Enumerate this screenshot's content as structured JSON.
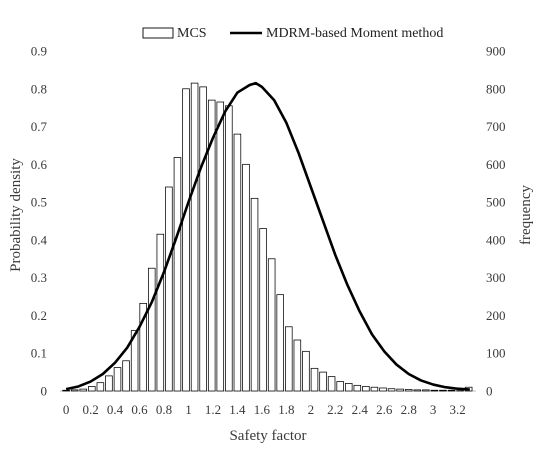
{
  "chart_data": {
    "type": "bar",
    "title": "",
    "xlabel": "Safety factor",
    "ylabel": "Probability density",
    "y2label": "frequency",
    "xlim": [
      -0.05,
      3.35
    ],
    "ylim": [
      0,
      0.9
    ],
    "y2lim": [
      0,
      900
    ],
    "x_ticks": [
      "0",
      "0.2",
      "0.4",
      "0.6",
      "0.8",
      "1",
      "1.2",
      "1.4",
      "1.6",
      "1.8",
      "2",
      "2.2",
      "2.4",
      "2.6",
      "2.8",
      "3",
      "3.2"
    ],
    "y_ticks": [
      "0",
      "0.1",
      "0.2",
      "0.3",
      "0.4",
      "0.5",
      "0.6",
      "0.7",
      "0.8",
      "0.9"
    ],
    "y2_ticks": [
      "0",
      "100",
      "200",
      "300",
      "400",
      "500",
      "600",
      "700",
      "800",
      "900"
    ],
    "grid": false,
    "legend_position": "top",
    "legend": {
      "mcs": "MCS",
      "curve": "MDRM-based Moment method"
    },
    "series": [
      {
        "name": "MCS",
        "kind": "histogram",
        "axis": "right",
        "bin_width": 0.07,
        "x": [
          0.0,
          0.07,
          0.14,
          0.21,
          0.28,
          0.35,
          0.42,
          0.49,
          0.56,
          0.63,
          0.7,
          0.77,
          0.84,
          0.91,
          0.98,
          1.05,
          1.12,
          1.19,
          1.26,
          1.33,
          1.4,
          1.47,
          1.54,
          1.61,
          1.68,
          1.75,
          1.82,
          1.89,
          1.96,
          2.03,
          2.1,
          2.17,
          2.24,
          2.31,
          2.38,
          2.45,
          2.52,
          2.59,
          2.66,
          2.73,
          2.8,
          2.87,
          2.94,
          3.01,
          3.08,
          3.15,
          3.22,
          3.29
        ],
        "values": [
          2,
          3,
          5,
          12,
          22,
          40,
          62,
          80,
          160,
          232,
          325,
          415,
          540,
          618,
          800,
          815,
          805,
          770,
          765,
          755,
          680,
          600,
          510,
          430,
          350,
          255,
          170,
          135,
          105,
          60,
          50,
          38,
          25,
          20,
          15,
          12,
          10,
          8,
          6,
          5,
          4,
          3,
          3,
          2,
          2,
          2,
          1,
          10
        ]
      },
      {
        "name": "MDRM-based Moment method",
        "kind": "line",
        "axis": "left",
        "x": [
          0,
          0.1,
          0.2,
          0.3,
          0.4,
          0.5,
          0.6,
          0.7,
          0.8,
          0.9,
          1.0,
          1.1,
          1.2,
          1.3,
          1.4,
          1.5,
          1.55,
          1.6,
          1.7,
          1.8,
          1.9,
          2.0,
          2.1,
          2.2,
          2.3,
          2.4,
          2.5,
          2.6,
          2.7,
          2.8,
          2.9,
          3.0,
          3.1,
          3.2,
          3.3
        ],
        "values": [
          0.005,
          0.012,
          0.025,
          0.045,
          0.075,
          0.115,
          0.17,
          0.235,
          0.315,
          0.405,
          0.5,
          0.59,
          0.67,
          0.74,
          0.79,
          0.81,
          0.815,
          0.805,
          0.77,
          0.71,
          0.63,
          0.54,
          0.45,
          0.36,
          0.28,
          0.21,
          0.15,
          0.105,
          0.07,
          0.045,
          0.028,
          0.017,
          0.01,
          0.006,
          0.004
        ]
      }
    ]
  }
}
